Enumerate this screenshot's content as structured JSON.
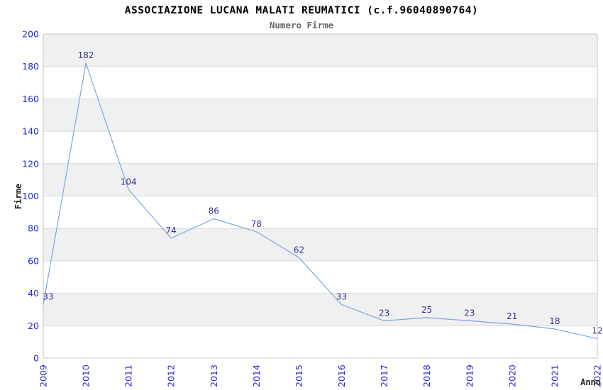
{
  "chart_data": {
    "type": "line",
    "title": "ASSOCIAZIONE LUCANA MALATI REUMATICI (c.f.96040890764)",
    "subtitle": "Numero Firme",
    "xlabel": "Anno",
    "ylabel": "Firme",
    "categories": [
      "2009",
      "2010",
      "2011",
      "2012",
      "2013",
      "2014",
      "2015",
      "2016",
      "2017",
      "2018",
      "2019",
      "2020",
      "2021",
      "2022"
    ],
    "series": [
      {
        "name": "Numero Firme",
        "values": [
          33,
          182,
          104,
          74,
          86,
          78,
          62,
          33,
          23,
          25,
          23,
          21,
          18,
          12
        ]
      }
    ],
    "data_labels_shown": true,
    "ylim": [
      0,
      200
    ],
    "ytick_step": 20,
    "grid": "horizontal-gridlines-with-alternating-bands",
    "legend_position": "none",
    "x_tick_rotation_degrees": 90,
    "colors": {
      "line": "#7aa7e0",
      "tick_label": "#2b2bd0",
      "data_label": "#333399",
      "band_fill": "#f0f0f0",
      "gridline": "#d9d9d9",
      "plot_border": "#c6c6c6",
      "title": "#000000",
      "subtitle": "#666666",
      "axis_label": "#222222",
      "background": "#ffffff"
    }
  }
}
